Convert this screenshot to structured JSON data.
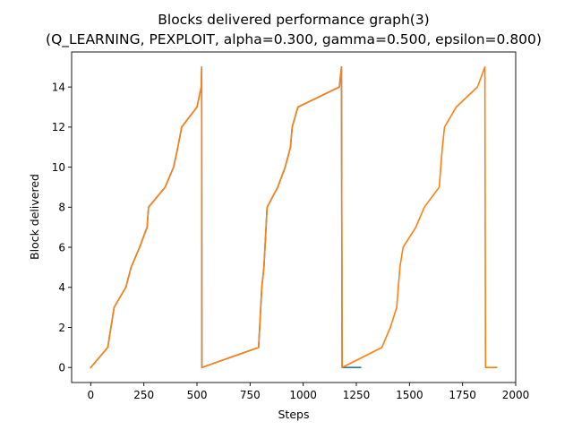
{
  "chart_data": {
    "type": "line",
    "title": "Blocks delivered performance graph(3)",
    "subtitle": "(Q_LEARNING, PEXPLOIT, alpha=0.300, gamma=0.500, epsilon=0.800)",
    "xlabel": "Steps",
    "ylabel": "Block delivered",
    "xlim": [
      -90,
      2000
    ],
    "ylim": [
      -0.75,
      15.75
    ],
    "xticks": [
      0,
      250,
      500,
      750,
      1000,
      1250,
      1500,
      1750,
      2000
    ],
    "yticks": [
      0,
      2,
      4,
      6,
      8,
      10,
      12,
      14
    ],
    "grid": false,
    "legend": "none",
    "series": [
      {
        "color": "#1f77b4",
        "points": [
          [
            0,
            0
          ],
          [
            80,
            1
          ],
          [
            110,
            3
          ],
          [
            165,
            4
          ],
          [
            190,
            5
          ],
          [
            230,
            6
          ],
          [
            265,
            7
          ],
          [
            272,
            8
          ],
          [
            350,
            9
          ],
          [
            390,
            10
          ],
          [
            410,
            11
          ],
          [
            428,
            12
          ],
          [
            500,
            13
          ],
          [
            520,
            14
          ],
          [
            522,
            15
          ],
          [
            523,
            0
          ],
          [
            790,
            1
          ],
          [
            795,
            2
          ],
          [
            805,
            4
          ],
          [
            815,
            5
          ],
          [
            830,
            8
          ],
          [
            880,
            9
          ],
          [
            915,
            10
          ],
          [
            940,
            11
          ],
          [
            948,
            12
          ],
          [
            975,
            13
          ],
          [
            1170,
            14
          ],
          [
            1180,
            15
          ],
          [
            1183,
            0
          ],
          [
            1270,
            0
          ]
        ]
      },
      {
        "color": "#ff7f0e",
        "points": [
          [
            0,
            0
          ],
          [
            80,
            1
          ],
          [
            110,
            3
          ],
          [
            165,
            4
          ],
          [
            190,
            5
          ],
          [
            230,
            6
          ],
          [
            265,
            7
          ],
          [
            272,
            8
          ],
          [
            350,
            9
          ],
          [
            390,
            10
          ],
          [
            410,
            11
          ],
          [
            428,
            12
          ],
          [
            500,
            13
          ],
          [
            520,
            14
          ],
          [
            522,
            15
          ],
          [
            523,
            0
          ],
          [
            790,
            1
          ],
          [
            795,
            2
          ],
          [
            805,
            4
          ],
          [
            815,
            5
          ],
          [
            830,
            8
          ],
          [
            880,
            9
          ],
          [
            915,
            10
          ],
          [
            940,
            11
          ],
          [
            948,
            12
          ],
          [
            975,
            13
          ],
          [
            1170,
            14
          ],
          [
            1180,
            15
          ],
          [
            1183,
            0
          ],
          [
            1370,
            1
          ],
          [
            1410,
            2
          ],
          [
            1440,
            3
          ],
          [
            1455,
            5
          ],
          [
            1470,
            6
          ],
          [
            1530,
            7
          ],
          [
            1570,
            8
          ],
          [
            1640,
            9
          ],
          [
            1655,
            11
          ],
          [
            1665,
            12
          ],
          [
            1720,
            13
          ],
          [
            1820,
            14
          ],
          [
            1855,
            15
          ],
          [
            1858,
            0
          ],
          [
            1910,
            0
          ]
        ]
      }
    ]
  }
}
